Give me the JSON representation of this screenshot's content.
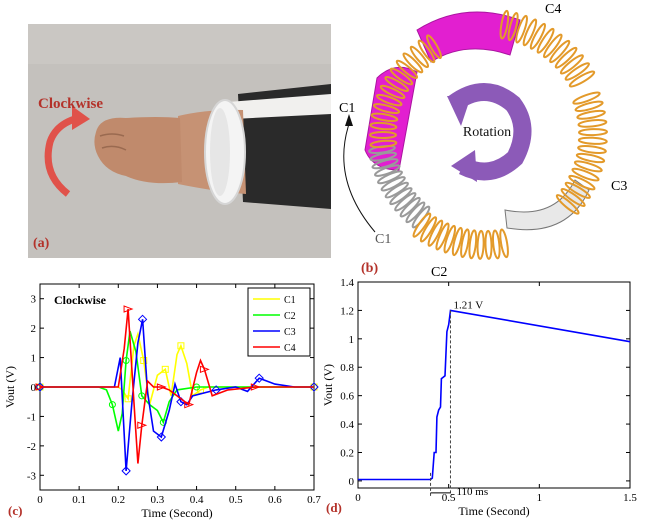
{
  "panel_a": {
    "label": "(a)",
    "direction_text": "Clockwise",
    "colors": {
      "arrow": "#e0524a",
      "label": "#b4322a"
    }
  },
  "panel_b": {
    "label": "(b)",
    "rotation_text": "Rotation",
    "coils": {
      "c4": "C4",
      "c1_top": "C1",
      "c3": "C3",
      "c1_bottom": "C1",
      "c2": "C2"
    },
    "colors": {
      "magenta": "#e21fd0",
      "spring": "#e39a2a",
      "rotation_arrow": "#8c5ab8"
    }
  },
  "chart_data": [
    {
      "type": "line",
      "panel_label": "(c)",
      "title": "Clockwise",
      "xlabel": "Time (Second)",
      "ylabel": "Vout (V)",
      "xlim": [
        0,
        0.7
      ],
      "ylim": [
        -3.5,
        3.5
      ],
      "xticks": [
        0,
        0.1,
        0.2,
        0.3,
        0.4,
        0.5,
        0.6,
        0.7
      ],
      "yticks": [
        -3,
        -2,
        -1,
        0,
        1,
        2,
        3
      ],
      "legend_position": "top-right",
      "series": [
        {
          "name": "C1",
          "color": "#ffff00",
          "marker": "square",
          "x": [
            0,
            0.2,
            0.21,
            0.225,
            0.24,
            0.25,
            0.265,
            0.28,
            0.3,
            0.32,
            0.335,
            0.35,
            0.36,
            0.375,
            0.39,
            0.41,
            0.43,
            0.5,
            0.7
          ],
          "y": [
            0,
            0,
            -0.1,
            -0.4,
            1.4,
            1.8,
            0.9,
            -0.6,
            0.4,
            0.6,
            -0.3,
            1.1,
            1.4,
            0.8,
            -0.3,
            -0.1,
            0,
            0,
            0
          ]
        },
        {
          "name": "C2",
          "color": "#00ff00",
          "marker": "circle",
          "x": [
            0,
            0.15,
            0.17,
            0.185,
            0.2,
            0.21,
            0.22,
            0.23,
            0.245,
            0.26,
            0.28,
            0.3,
            0.315,
            0.33,
            0.35,
            0.4,
            0.7
          ],
          "y": [
            0,
            0,
            -0.1,
            -0.6,
            -1.5,
            -0.9,
            0.9,
            1.9,
            1.2,
            -0.3,
            -0.6,
            -0.8,
            -1.2,
            -0.5,
            -0.1,
            0,
            0
          ]
        },
        {
          "name": "C3",
          "color": "#0000ff",
          "marker": "diamond",
          "x": [
            0,
            0.19,
            0.205,
            0.22,
            0.235,
            0.25,
            0.262,
            0.275,
            0.29,
            0.31,
            0.33,
            0.345,
            0.36,
            0.375,
            0.39,
            0.45,
            0.5,
            0.53,
            0.56,
            0.6,
            0.65,
            0.7
          ],
          "y": [
            0,
            0,
            1.0,
            -2.85,
            -0.5,
            1.5,
            2.3,
            -0.2,
            -1.5,
            -1.7,
            -0.8,
            0.1,
            -0.5,
            -0.6,
            -0.3,
            -0.1,
            0,
            -0.15,
            0.3,
            0.1,
            0,
            0
          ]
        },
        {
          "name": "C4",
          "color": "#ff0000",
          "marker": "triangle",
          "x": [
            0,
            0.2,
            0.215,
            0.225,
            0.24,
            0.25,
            0.26,
            0.275,
            0.29,
            0.31,
            0.33,
            0.36,
            0.38,
            0.4,
            0.41,
            0.42,
            0.44,
            0.48,
            0.55,
            0.7
          ],
          "y": [
            0,
            0,
            1.3,
            2.65,
            -0.5,
            -2.6,
            -1.3,
            0.2,
            0,
            0,
            -0.1,
            -0.4,
            -0.6,
            0.5,
            0.9,
            0.6,
            -0.3,
            -0.1,
            0,
            0
          ]
        }
      ]
    },
    {
      "type": "line",
      "panel_label": "(d)",
      "xlabel": "Time (Second)",
      "ylabel": "Vout (V)",
      "xlim": [
        0,
        1.5
      ],
      "ylim": [
        -0.05,
        1.4
      ],
      "xticks": [
        0,
        0.5,
        1,
        1.5
      ],
      "yticks": [
        0,
        0.2,
        0.4,
        0.6,
        0.8,
        1,
        1.2,
        1.4
      ],
      "annotations": [
        "1.21 V",
        "110 ms"
      ],
      "series": [
        {
          "name": "",
          "color": "#0000ff",
          "x": [
            0,
            0.4,
            0.41,
            0.42,
            0.43,
            0.435,
            0.445,
            0.455,
            0.46,
            0.47,
            0.48,
            0.49,
            0.5,
            0.51,
            1.5
          ],
          "y": [
            0.01,
            0.01,
            0.02,
            0.2,
            0.2,
            0.45,
            0.5,
            0.52,
            0.72,
            0.73,
            0.74,
            1.05,
            1.1,
            1.2,
            0.98
          ]
        }
      ]
    }
  ]
}
